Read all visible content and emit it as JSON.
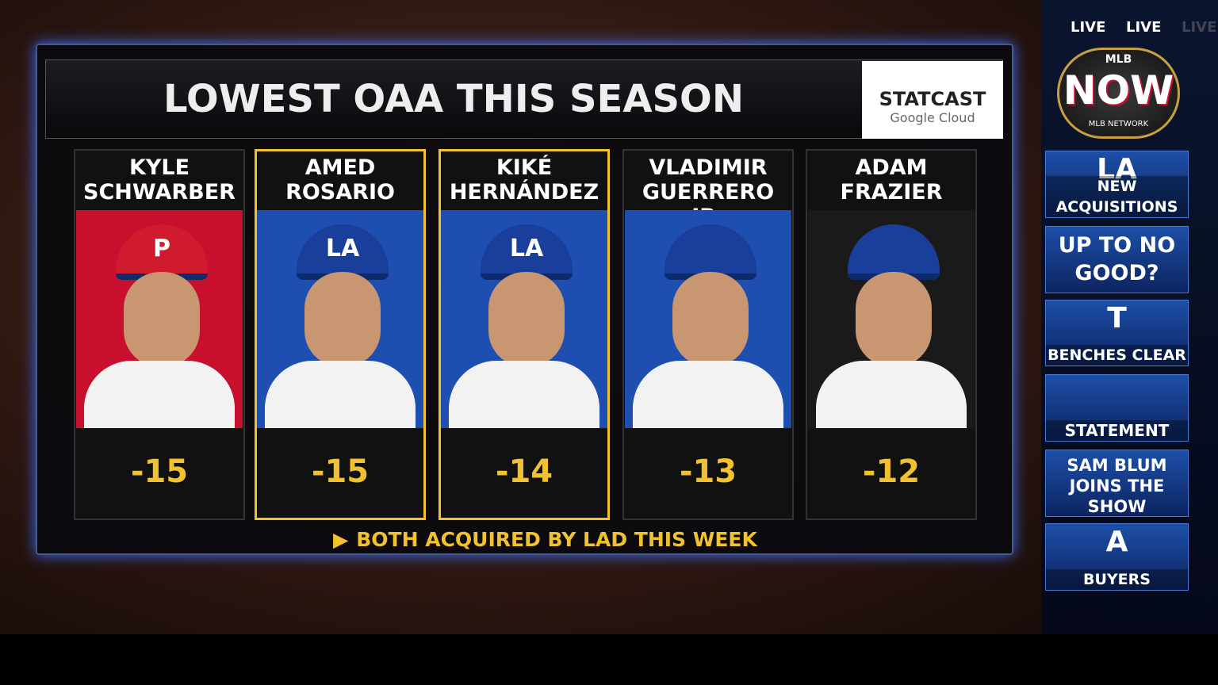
{
  "header": {
    "title": "LOWEST OAA THIS SEASON",
    "logo": {
      "name": "STATCAST",
      "sponsor": "Google Cloud"
    }
  },
  "players": [
    {
      "first": "KYLE",
      "last": "SCHWARBER",
      "oaa": -15,
      "cap": "P",
      "color": "#c8102e",
      "highlighted": false
    },
    {
      "first": "AMED",
      "last": "ROSARIO",
      "oaa": -15,
      "cap": "LA",
      "color": "#1e4fb0",
      "highlighted": true
    },
    {
      "first": "KIKÉ",
      "last": "HERNÁNDEZ",
      "oaa": -14,
      "cap": "LA",
      "color": "#1e4fb0",
      "highlighted": true
    },
    {
      "first": "VLADIMIR",
      "last": "GUERRERO JR.",
      "oaa": -13,
      "cap": "",
      "color": "#1e4fb0",
      "highlighted": false
    },
    {
      "first": "ADAM",
      "last": "FRAZIER",
      "oaa": -12,
      "cap": "",
      "color": "#1a1a1a",
      "highlighted": false
    }
  ],
  "note": "BOTH ACQUIRED BY LAD THIS WEEK",
  "sidebar": {
    "live": [
      "LIVE",
      "LIVE",
      "LIVE"
    ],
    "brand": {
      "top": "MLB",
      "main": "NOW",
      "bottom": "MLB NETWORK"
    },
    "items": [
      {
        "logo": "LA",
        "label": "NEW ACQUISITIONS"
      },
      {
        "label": "UP TO NO GOOD?"
      },
      {
        "logo": "T",
        "label": "BENCHES CLEAR"
      },
      {
        "label": "STATEMENT"
      },
      {
        "label": "SAM BLUM JOINS THE SHOW"
      },
      {
        "logo": "A",
        "label": "BUYERS"
      }
    ]
  }
}
